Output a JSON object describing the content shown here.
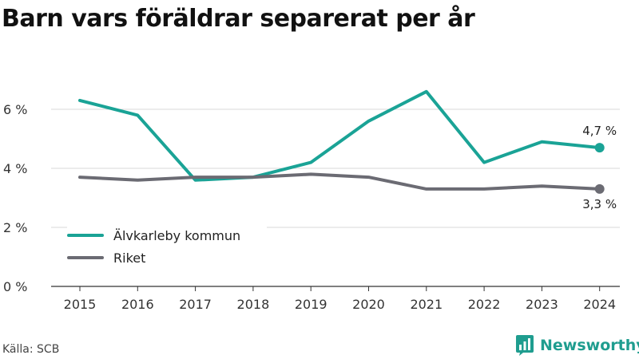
{
  "title": "Barn vars föräldrar separerat per år",
  "source": "Källa: SCB",
  "brand": {
    "name": "Newsworthy",
    "icon": "newsworthy-logo-icon",
    "color": "#1f9d8f"
  },
  "chart_data": {
    "type": "line",
    "title": "Barn vars föräldrar separerat per år",
    "xlabel": "",
    "ylabel": "",
    "x": [
      "2015",
      "2016",
      "2017",
      "2018",
      "2019",
      "2020",
      "2021",
      "2022",
      "2023",
      "2024"
    ],
    "ylim": [
      0,
      8
    ],
    "yticks": [
      0,
      2,
      4,
      6
    ],
    "ytick_labels": [
      "0 %",
      "2 %",
      "4 %",
      "6 %"
    ],
    "grid": true,
    "legend_position": "bottom-left",
    "series": [
      {
        "name": "Älvkarleby kommun",
        "color": "#1aa396",
        "values": [
          6.3,
          5.8,
          3.6,
          3.7,
          4.2,
          5.6,
          6.6,
          4.2,
          4.9,
          4.7
        ],
        "end_label": "4,7 %"
      },
      {
        "name": "Riket",
        "color": "#6b6b73",
        "values": [
          3.7,
          3.6,
          3.7,
          3.7,
          3.8,
          3.7,
          3.3,
          3.3,
          3.4,
          3.3
        ],
        "end_label": "3,3 %"
      }
    ]
  }
}
